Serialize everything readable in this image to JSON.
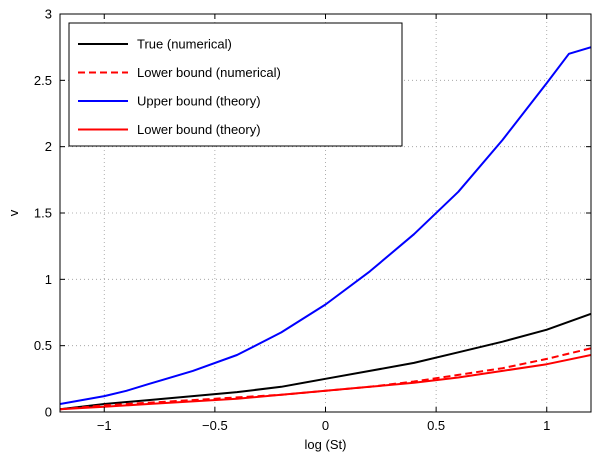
{
  "chart_data": {
    "type": "line",
    "title": "",
    "xlabel": "log (St)",
    "ylabel": "v",
    "xlim": [
      -1.2,
      1.2
    ],
    "ylim": [
      0,
      3
    ],
    "xticks": [
      -1,
      -0.5,
      0,
      0.5,
      1
    ],
    "xtick_labels": [
      "−1",
      "−0.5",
      "0",
      "0.5",
      "1"
    ],
    "yticks": [
      0,
      0.5,
      1,
      1.5,
      2,
      2.5,
      3
    ],
    "ytick_labels": [
      "0",
      "0.5",
      "1",
      "1.5",
      "2",
      "2.5",
      "3"
    ],
    "grid": true,
    "legend_position": "top-left",
    "series": [
      {
        "name": "True (numerical)",
        "color": "#000000",
        "dash": "solid",
        "x": [
          -1.2,
          -1.0,
          -0.8,
          -0.6,
          -0.4,
          -0.2,
          0.0,
          0.2,
          0.4,
          0.6,
          0.8,
          1.0,
          1.2
        ],
        "y": [
          0.02,
          0.06,
          0.09,
          0.12,
          0.15,
          0.19,
          0.25,
          0.31,
          0.37,
          0.45,
          0.53,
          0.62,
          0.74
        ]
      },
      {
        "name": "Lower bound (numerical)",
        "color": "#ff0000",
        "dash": "dashed",
        "x": [
          -1.2,
          -1.0,
          -0.8,
          -0.6,
          -0.4,
          -0.2,
          0.0,
          0.2,
          0.4,
          0.6,
          0.8,
          1.0,
          1.2
        ],
        "y": [
          0.02,
          0.05,
          0.07,
          0.09,
          0.11,
          0.13,
          0.16,
          0.19,
          0.23,
          0.28,
          0.33,
          0.4,
          0.48
        ]
      },
      {
        "name": "Upper bound (theory)",
        "color": "#0000ff",
        "dash": "solid",
        "x": [
          -1.2,
          -1.0,
          -0.9,
          -0.8,
          -0.6,
          -0.4,
          -0.2,
          0.0,
          0.2,
          0.4,
          0.6,
          0.8,
          1.0,
          1.1,
          1.2
        ],
        "y": [
          0.06,
          0.12,
          0.16,
          0.21,
          0.31,
          0.43,
          0.6,
          0.81,
          1.06,
          1.34,
          1.66,
          2.05,
          2.48,
          2.7,
          2.75
        ]
      },
      {
        "name": "Lower bound (theory)",
        "color": "#ff0000",
        "dash": "solid",
        "x": [
          -1.2,
          -1.0,
          -0.8,
          -0.6,
          -0.4,
          -0.2,
          0.0,
          0.2,
          0.4,
          0.6,
          0.8,
          1.0,
          1.2
        ],
        "y": [
          0.02,
          0.04,
          0.06,
          0.08,
          0.1,
          0.13,
          0.16,
          0.19,
          0.22,
          0.26,
          0.31,
          0.36,
          0.43
        ]
      }
    ]
  }
}
